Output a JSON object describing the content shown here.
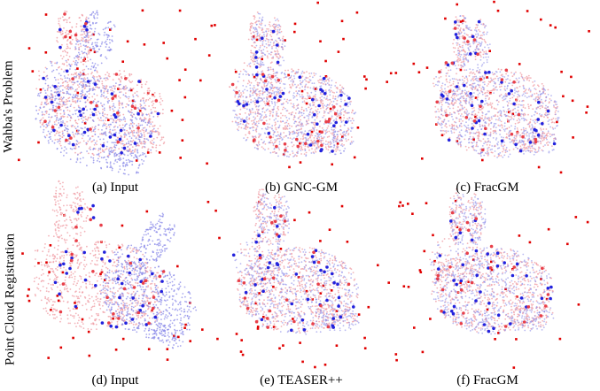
{
  "rows": [
    {
      "label": "Wahba's Problem",
      "panels": [
        {
          "caption": "(a) Input",
          "state": "input"
        },
        {
          "caption": "(b) GNC-GM",
          "state": "aligned"
        },
        {
          "caption": "(c) FracGM",
          "state": "aligned"
        }
      ]
    },
    {
      "label": "Point Cloud Registration",
      "panels": [
        {
          "caption": "(d) Input",
          "state": "input"
        },
        {
          "caption": "(e) TEASER++",
          "state": "aligned"
        },
        {
          "caption": "(f) FracGM",
          "state": "aligned"
        }
      ]
    }
  ],
  "colors": {
    "source": "#e8404a",
    "target": "#2222dd",
    "source_light": "#f0a0a8",
    "target_light": "#8a8ae8",
    "outlier": "#e00000"
  }
}
